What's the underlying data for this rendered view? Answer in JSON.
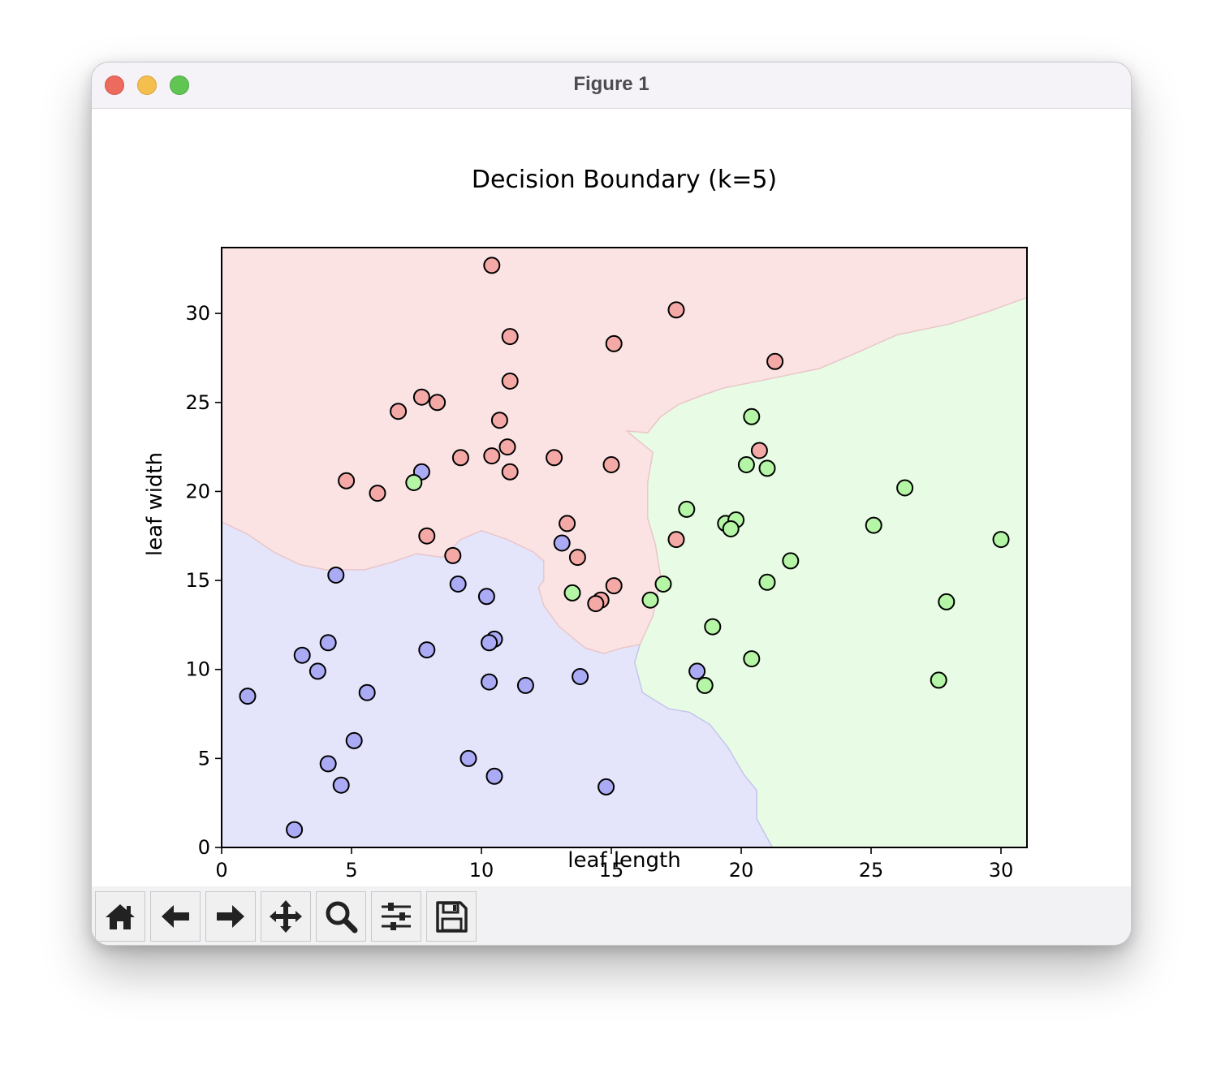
{
  "window": {
    "title": "Figure 1"
  },
  "toolbar": {
    "buttons": [
      {
        "name": "home-button",
        "icon": "home-icon"
      },
      {
        "name": "back-button",
        "icon": "arrow-left-icon"
      },
      {
        "name": "forward-button",
        "icon": "arrow-right-icon"
      },
      {
        "name": "pan-button",
        "icon": "move-icon"
      },
      {
        "name": "zoom-button",
        "icon": "magnifier-icon"
      },
      {
        "name": "configure-subplots-button",
        "icon": "sliders-icon"
      },
      {
        "name": "save-button",
        "icon": "floppy-disk-icon"
      }
    ]
  },
  "chart_data": {
    "type": "scatter",
    "title": "Decision Boundary (k=5)",
    "xlabel": "leaf length",
    "ylabel": "leaf width",
    "xlim": [
      0,
      31
    ],
    "ylim": [
      0,
      33.7
    ],
    "xticks": [
      0,
      5,
      10,
      15,
      20,
      25,
      30
    ],
    "yticks": [
      0,
      5,
      10,
      15,
      20,
      25,
      30
    ],
    "grid": false,
    "classes": [
      {
        "region_color": "#fbe3e4",
        "point_color": "#f5a9a6"
      },
      {
        "region_color": "#e4e4fb",
        "point_color": "#aaaaf5"
      },
      {
        "region_color": "#e8fbe4",
        "point_color": "#b4f5a6"
      }
    ],
    "regions": {
      "red_blue_boundary": [
        [
          0,
          18.3
        ],
        [
          1,
          17.6
        ],
        [
          2,
          16.6
        ],
        [
          3,
          15.9
        ],
        [
          4,
          15.6
        ],
        [
          5.5,
          15.6
        ],
        [
          6.5,
          16
        ],
        [
          7.5,
          16.5
        ],
        [
          8.5,
          16.3
        ],
        [
          9.2,
          17.3
        ],
        [
          10,
          17.8
        ],
        [
          11,
          17.3
        ],
        [
          12,
          16.6
        ],
        [
          12.4,
          16.1
        ],
        [
          12.4,
          15
        ],
        [
          12.2,
          14.6
        ],
        [
          12.4,
          13.6
        ],
        [
          13,
          12.4
        ],
        [
          14,
          11.2
        ],
        [
          14.7,
          10.9
        ],
        [
          15.4,
          11.2
        ],
        [
          16.1,
          11.4
        ],
        [
          16.6,
          13
        ],
        [
          16.9,
          15.2
        ],
        [
          16.7,
          17
        ],
        [
          16.4,
          18.5
        ],
        [
          16.4,
          20.5
        ],
        [
          16.6,
          22.2
        ],
        [
          16.0,
          22.9
        ],
        [
          15.6,
          23.4
        ],
        [
          16.4,
          23.3
        ],
        [
          16.9,
          24.2
        ],
        [
          17.6,
          24.9
        ],
        [
          18.5,
          25.4
        ],
        [
          19.3,
          25.8
        ],
        [
          21,
          26.3
        ],
        [
          22,
          26.6
        ],
        [
          23,
          26.9
        ],
        [
          24.3,
          27.7
        ],
        [
          26,
          28.8
        ],
        [
          28,
          29.4
        ],
        [
          29.5,
          30.1
        ],
        [
          31,
          30.9
        ]
      ],
      "blue_green_boundary": [
        [
          16.1,
          11.4
        ],
        [
          15.9,
          10.4
        ],
        [
          16.2,
          8.7
        ],
        [
          17.2,
          7.8
        ],
        [
          18,
          7.6
        ],
        [
          18.8,
          6.9
        ],
        [
          19.5,
          5.6
        ],
        [
          20.1,
          4.1
        ],
        [
          20.6,
          3.2
        ],
        [
          20.6,
          1.6
        ],
        [
          21.2,
          0
        ]
      ]
    },
    "points": [
      {
        "x": 10.4,
        "y": 32.7,
        "cls": 0
      },
      {
        "x": 17.5,
        "y": 30.2,
        "cls": 0
      },
      {
        "x": 11.1,
        "y": 28.7,
        "cls": 0
      },
      {
        "x": 15.1,
        "y": 28.3,
        "cls": 0
      },
      {
        "x": 21.3,
        "y": 27.3,
        "cls": 0
      },
      {
        "x": 11.1,
        "y": 26.2,
        "cls": 0
      },
      {
        "x": 7.7,
        "y": 25.3,
        "cls": 0
      },
      {
        "x": 8.3,
        "y": 25.0,
        "cls": 0
      },
      {
        "x": 6.8,
        "y": 24.5,
        "cls": 0
      },
      {
        "x": 10.7,
        "y": 24.0,
        "cls": 0
      },
      {
        "x": 20.7,
        "y": 22.3,
        "cls": 0
      },
      {
        "x": 11.0,
        "y": 22.5,
        "cls": 0
      },
      {
        "x": 10.4,
        "y": 22.0,
        "cls": 0
      },
      {
        "x": 9.2,
        "y": 21.9,
        "cls": 0
      },
      {
        "x": 12.8,
        "y": 21.9,
        "cls": 0
      },
      {
        "x": 15.0,
        "y": 21.5,
        "cls": 0
      },
      {
        "x": 11.1,
        "y": 21.1,
        "cls": 0
      },
      {
        "x": 4.8,
        "y": 20.6,
        "cls": 0
      },
      {
        "x": 6.0,
        "y": 19.9,
        "cls": 0
      },
      {
        "x": 13.3,
        "y": 18.2,
        "cls": 0
      },
      {
        "x": 7.9,
        "y": 17.5,
        "cls": 0
      },
      {
        "x": 17.5,
        "y": 17.3,
        "cls": 0
      },
      {
        "x": 8.9,
        "y": 16.4,
        "cls": 0
      },
      {
        "x": 13.7,
        "y": 16.3,
        "cls": 0
      },
      {
        "x": 15.1,
        "y": 14.7,
        "cls": 0
      },
      {
        "x": 14.6,
        "y": 13.9,
        "cls": 0
      },
      {
        "x": 14.4,
        "y": 13.7,
        "cls": 0
      },
      {
        "x": 7.7,
        "y": 21.1,
        "cls": 1
      },
      {
        "x": 13.1,
        "y": 17.1,
        "cls": 1
      },
      {
        "x": 4.4,
        "y": 15.3,
        "cls": 1
      },
      {
        "x": 9.1,
        "y": 14.8,
        "cls": 1
      },
      {
        "x": 10.2,
        "y": 14.1,
        "cls": 1
      },
      {
        "x": 10.5,
        "y": 11.7,
        "cls": 1
      },
      {
        "x": 10.3,
        "y": 11.5,
        "cls": 1
      },
      {
        "x": 4.1,
        "y": 11.5,
        "cls": 1
      },
      {
        "x": 7.9,
        "y": 11.1,
        "cls": 1
      },
      {
        "x": 3.1,
        "y": 10.8,
        "cls": 1
      },
      {
        "x": 3.7,
        "y": 9.9,
        "cls": 1
      },
      {
        "x": 18.3,
        "y": 9.9,
        "cls": 1
      },
      {
        "x": 13.8,
        "y": 9.6,
        "cls": 1
      },
      {
        "x": 10.3,
        "y": 9.3,
        "cls": 1
      },
      {
        "x": 11.7,
        "y": 9.1,
        "cls": 1
      },
      {
        "x": 5.6,
        "y": 8.7,
        "cls": 1
      },
      {
        "x": 1.0,
        "y": 8.5,
        "cls": 1
      },
      {
        "x": 5.1,
        "y": 6.0,
        "cls": 1
      },
      {
        "x": 9.5,
        "y": 5.0,
        "cls": 1
      },
      {
        "x": 4.1,
        "y": 4.7,
        "cls": 1
      },
      {
        "x": 10.5,
        "y": 4.0,
        "cls": 1
      },
      {
        "x": 4.6,
        "y": 3.5,
        "cls": 1
      },
      {
        "x": 14.8,
        "y": 3.4,
        "cls": 1
      },
      {
        "x": 2.8,
        "y": 1.0,
        "cls": 1
      },
      {
        "x": 20.4,
        "y": 24.2,
        "cls": 2
      },
      {
        "x": 20.2,
        "y": 21.5,
        "cls": 2
      },
      {
        "x": 21.0,
        "y": 21.3,
        "cls": 2
      },
      {
        "x": 7.4,
        "y": 20.5,
        "cls": 2
      },
      {
        "x": 26.3,
        "y": 20.2,
        "cls": 2
      },
      {
        "x": 17.9,
        "y": 19.0,
        "cls": 2
      },
      {
        "x": 19.4,
        "y": 18.2,
        "cls": 2
      },
      {
        "x": 19.8,
        "y": 18.4,
        "cls": 2
      },
      {
        "x": 19.6,
        "y": 17.9,
        "cls": 2
      },
      {
        "x": 25.1,
        "y": 18.1,
        "cls": 2
      },
      {
        "x": 30.0,
        "y": 17.3,
        "cls": 2
      },
      {
        "x": 21.9,
        "y": 16.1,
        "cls": 2
      },
      {
        "x": 21.0,
        "y": 14.9,
        "cls": 2
      },
      {
        "x": 17.0,
        "y": 14.8,
        "cls": 2
      },
      {
        "x": 13.5,
        "y": 14.3,
        "cls": 2
      },
      {
        "x": 16.5,
        "y": 13.9,
        "cls": 2
      },
      {
        "x": 27.9,
        "y": 13.8,
        "cls": 2
      },
      {
        "x": 18.9,
        "y": 12.4,
        "cls": 2
      },
      {
        "x": 20.4,
        "y": 10.6,
        "cls": 2
      },
      {
        "x": 27.6,
        "y": 9.4,
        "cls": 2
      },
      {
        "x": 18.6,
        "y": 9.1,
        "cls": 2
      }
    ]
  }
}
